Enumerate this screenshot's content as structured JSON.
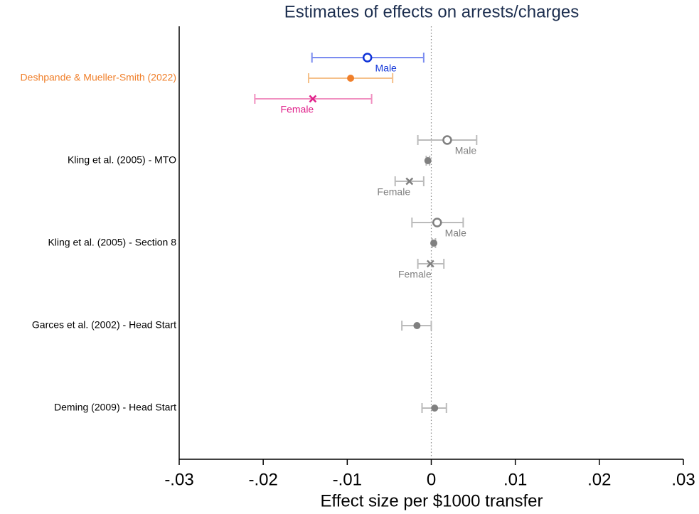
{
  "chart_data": {
    "type": "coefplot",
    "title": "Estimates of effects on arrests/charges",
    "xlabel": "Effect size per $1000 transfer",
    "xlim": [
      -0.03,
      0.03
    ],
    "xticks": [
      {
        "value": -0.03,
        "label": "-.03"
      },
      {
        "value": -0.02,
        "label": "-.02"
      },
      {
        "value": -0.01,
        "label": "-.01"
      },
      0,
      {
        "value": 0.01,
        "label": ".01"
      },
      {
        "value": 0.02,
        "label": ".02"
      },
      {
        "value": 0.03,
        "label": ".03"
      }
    ],
    "refline": 0,
    "groups": [
      {
        "label": "Deshpande & Mueller-Smith (2022)",
        "label_color": "#f07f2a",
        "estimates": [
          {
            "tag": "Male",
            "marker": "circle",
            "color": "#1034d8",
            "bar_color": "#7b8cf0",
            "value": -0.0076,
            "ci": [
              -0.0142,
              -0.0009
            ]
          },
          {
            "marker": "dot",
            "color": "#f07f2a",
            "bar_color": "#f5c08a",
            "value": -0.0096,
            "ci": [
              -0.0146,
              -0.0046
            ]
          },
          {
            "tag": "Female",
            "marker": "cross",
            "color": "#e0208a",
            "bar_color": "#f090c0",
            "value": -0.0141,
            "ci": [
              -0.021,
              -0.0071
            ]
          }
        ]
      },
      {
        "label": "Kling et al. (2005) - MTO",
        "label_color": "#000000",
        "estimates": [
          {
            "tag": "Male",
            "marker": "circle",
            "color": "#808080",
            "bar_color": "#bbbbbb",
            "value": 0.0019,
            "ci": [
              -0.0016,
              0.0054
            ]
          },
          {
            "marker": "dot",
            "color": "#808080",
            "bar_color": "#bbbbbb",
            "value": -0.0004,
            "ci": [
              -0.0006,
              -0.0002
            ]
          },
          {
            "tag": "Female",
            "marker": "cross",
            "color": "#808080",
            "bar_color": "#bbbbbb",
            "value": -0.0026,
            "ci": [
              -0.0043,
              -0.0009
            ]
          }
        ]
      },
      {
        "label": "Kling et al. (2005) - Section 8",
        "label_color": "#000000",
        "estimates": [
          {
            "tag": "Male",
            "marker": "circle",
            "color": "#808080",
            "bar_color": "#bbbbbb",
            "value": 0.0007,
            "ci": [
              -0.0023,
              0.0038
            ]
          },
          {
            "marker": "dot",
            "color": "#808080",
            "bar_color": "#bbbbbb",
            "value": 0.0003,
            "ci": [
              0.0001,
              0.0005
            ]
          },
          {
            "tag": "Female",
            "marker": "cross",
            "color": "#808080",
            "bar_color": "#bbbbbb",
            "value": -0.0001,
            "ci": [
              -0.0016,
              0.0015
            ]
          }
        ]
      },
      {
        "label": "Garces et al. (2002) - Head Start",
        "label_color": "#000000",
        "estimates": [
          {
            "marker": "dot",
            "color": "#808080",
            "bar_color": "#bbbbbb",
            "value": -0.0017,
            "ci": [
              -0.0035,
              0.0
            ]
          }
        ]
      },
      {
        "label": "Deming (2009) - Head Start",
        "label_color": "#000000",
        "estimates": [
          {
            "marker": "dot",
            "color": "#808080",
            "bar_color": "#bbbbbb",
            "value": 0.0004,
            "ci": [
              -0.0011,
              0.0018
            ]
          }
        ]
      }
    ]
  }
}
